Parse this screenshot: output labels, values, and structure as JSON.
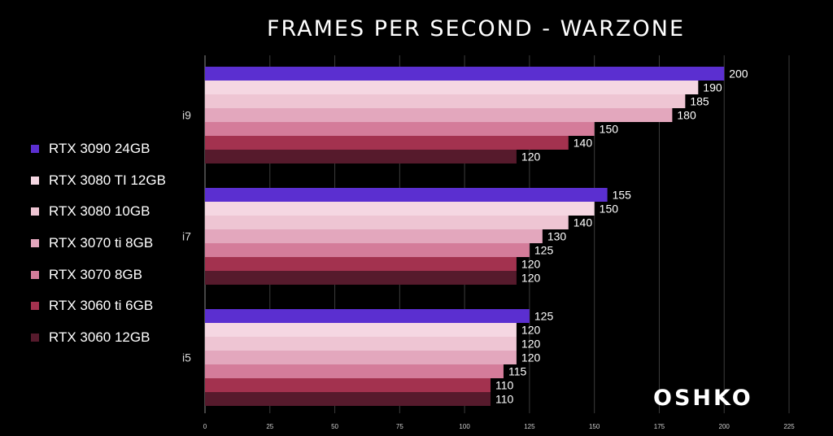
{
  "chart_data": {
    "type": "bar",
    "orientation": "horizontal",
    "title": "FRAMES PER SECOND - WARZONE",
    "categories": [
      "i9",
      "i7",
      "i5"
    ],
    "series": [
      {
        "name": "RTX 3090 24GB",
        "color": "#5b2fd0",
        "values": [
          200,
          155,
          125
        ]
      },
      {
        "name": "RTX 3080 TI 12GB",
        "color": "#f5d7e2",
        "values": [
          190,
          150,
          120
        ]
      },
      {
        "name": "RTX 3080 10GB",
        "color": "#eec5d3",
        "values": [
          185,
          140,
          120
        ]
      },
      {
        "name": "RTX 3070 ti 8GB",
        "color": "#e3a7bd",
        "values": [
          180,
          130,
          120
        ]
      },
      {
        "name": "RTX 3070 8GB",
        "color": "#d47c9a",
        "values": [
          150,
          125,
          115
        ]
      },
      {
        "name": "RTX 3060 ti 6GB",
        "color": "#a3324f",
        "values": [
          140,
          120,
          110
        ]
      },
      {
        "name": "RTX 3060 12GB",
        "color": "#561a2c",
        "values": [
          120,
          120,
          110
        ]
      }
    ],
    "xlim": [
      0,
      225
    ],
    "xticks": [
      "0",
      "25",
      "50",
      "75",
      "100",
      "125",
      "150",
      "175",
      "200",
      "225"
    ],
    "grid": true,
    "legend_position": "left"
  },
  "branding": {
    "logo_text": "OSHKO"
  }
}
